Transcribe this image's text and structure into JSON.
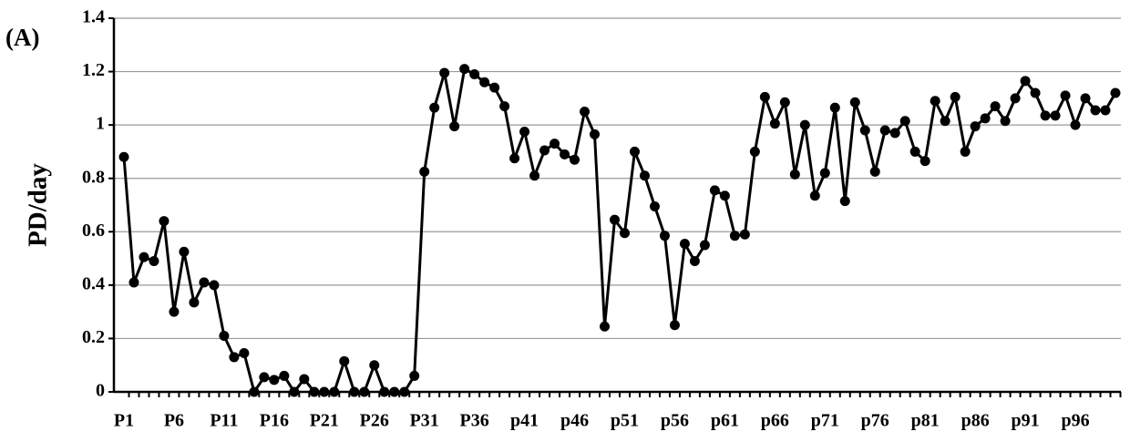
{
  "chart_data": {
    "type": "line",
    "annotation": "(A)",
    "ylabel": "PD/day",
    "categories": [
      "P1",
      null,
      null,
      null,
      null,
      "P6",
      null,
      null,
      null,
      null,
      "P11",
      null,
      null,
      null,
      null,
      "P16",
      null,
      null,
      null,
      null,
      "P21",
      null,
      null,
      null,
      null,
      "P26",
      null,
      null,
      null,
      null,
      "P31",
      null,
      null,
      null,
      null,
      "P36",
      null,
      null,
      null,
      null,
      "p41",
      null,
      null,
      null,
      null,
      "p46",
      null,
      null,
      null,
      null,
      "p51",
      null,
      null,
      null,
      null,
      "p56",
      null,
      null,
      null,
      null,
      "p61",
      null,
      null,
      null,
      null,
      "p66",
      null,
      null,
      null,
      null,
      "p71",
      null,
      null,
      null,
      null,
      "p76",
      null,
      null,
      null,
      null,
      "p81",
      null,
      null,
      null,
      null,
      "p86",
      null,
      null,
      null,
      null,
      "p91",
      null,
      null,
      null,
      null,
      "p96",
      null,
      null,
      null,
      null
    ],
    "values": [
      0.88,
      0.41,
      0.505,
      0.49,
      0.64,
      0.3,
      0.525,
      0.335,
      0.41,
      0.4,
      0.21,
      0.13,
      0.145,
      0,
      0.055,
      0.045,
      0.06,
      0,
      0.048,
      0,
      0,
      0,
      0.115,
      0,
      0,
      0.1,
      0,
      0,
      0,
      0.06,
      0.825,
      1.065,
      1.195,
      0.995,
      1.21,
      1.19,
      1.16,
      1.14,
      1.07,
      0.875,
      0.975,
      0.81,
      0.905,
      0.93,
      0.89,
      0.87,
      1.05,
      0.965,
      0.245,
      0.645,
      0.595,
      0.9,
      0.81,
      0.695,
      0.585,
      0.25,
      0.555,
      0.49,
      0.55,
      0.755,
      0.735,
      0.585,
      0.59,
      0.9,
      1.105,
      1.005,
      1.085,
      0.815,
      1.0,
      0.735,
      0.82,
      1.065,
      0.715,
      1.085,
      0.98,
      0.825,
      0.98,
      0.97,
      1.015,
      0.9,
      0.865,
      1.09,
      1.015,
      1.105,
      0.9,
      0.995,
      1.025,
      1.07,
      1.015,
      1.1,
      1.165,
      1.12,
      1.035,
      1.035,
      1.11,
      1.0,
      1.1,
      1.055,
      1.055,
      1.12
    ],
    "color": "#000000",
    "ylim": [
      0,
      1.4
    ],
    "yticks": [
      0,
      0.2,
      0.4,
      0.6,
      0.8,
      1,
      1.2,
      1.4
    ],
    "grid": true
  }
}
